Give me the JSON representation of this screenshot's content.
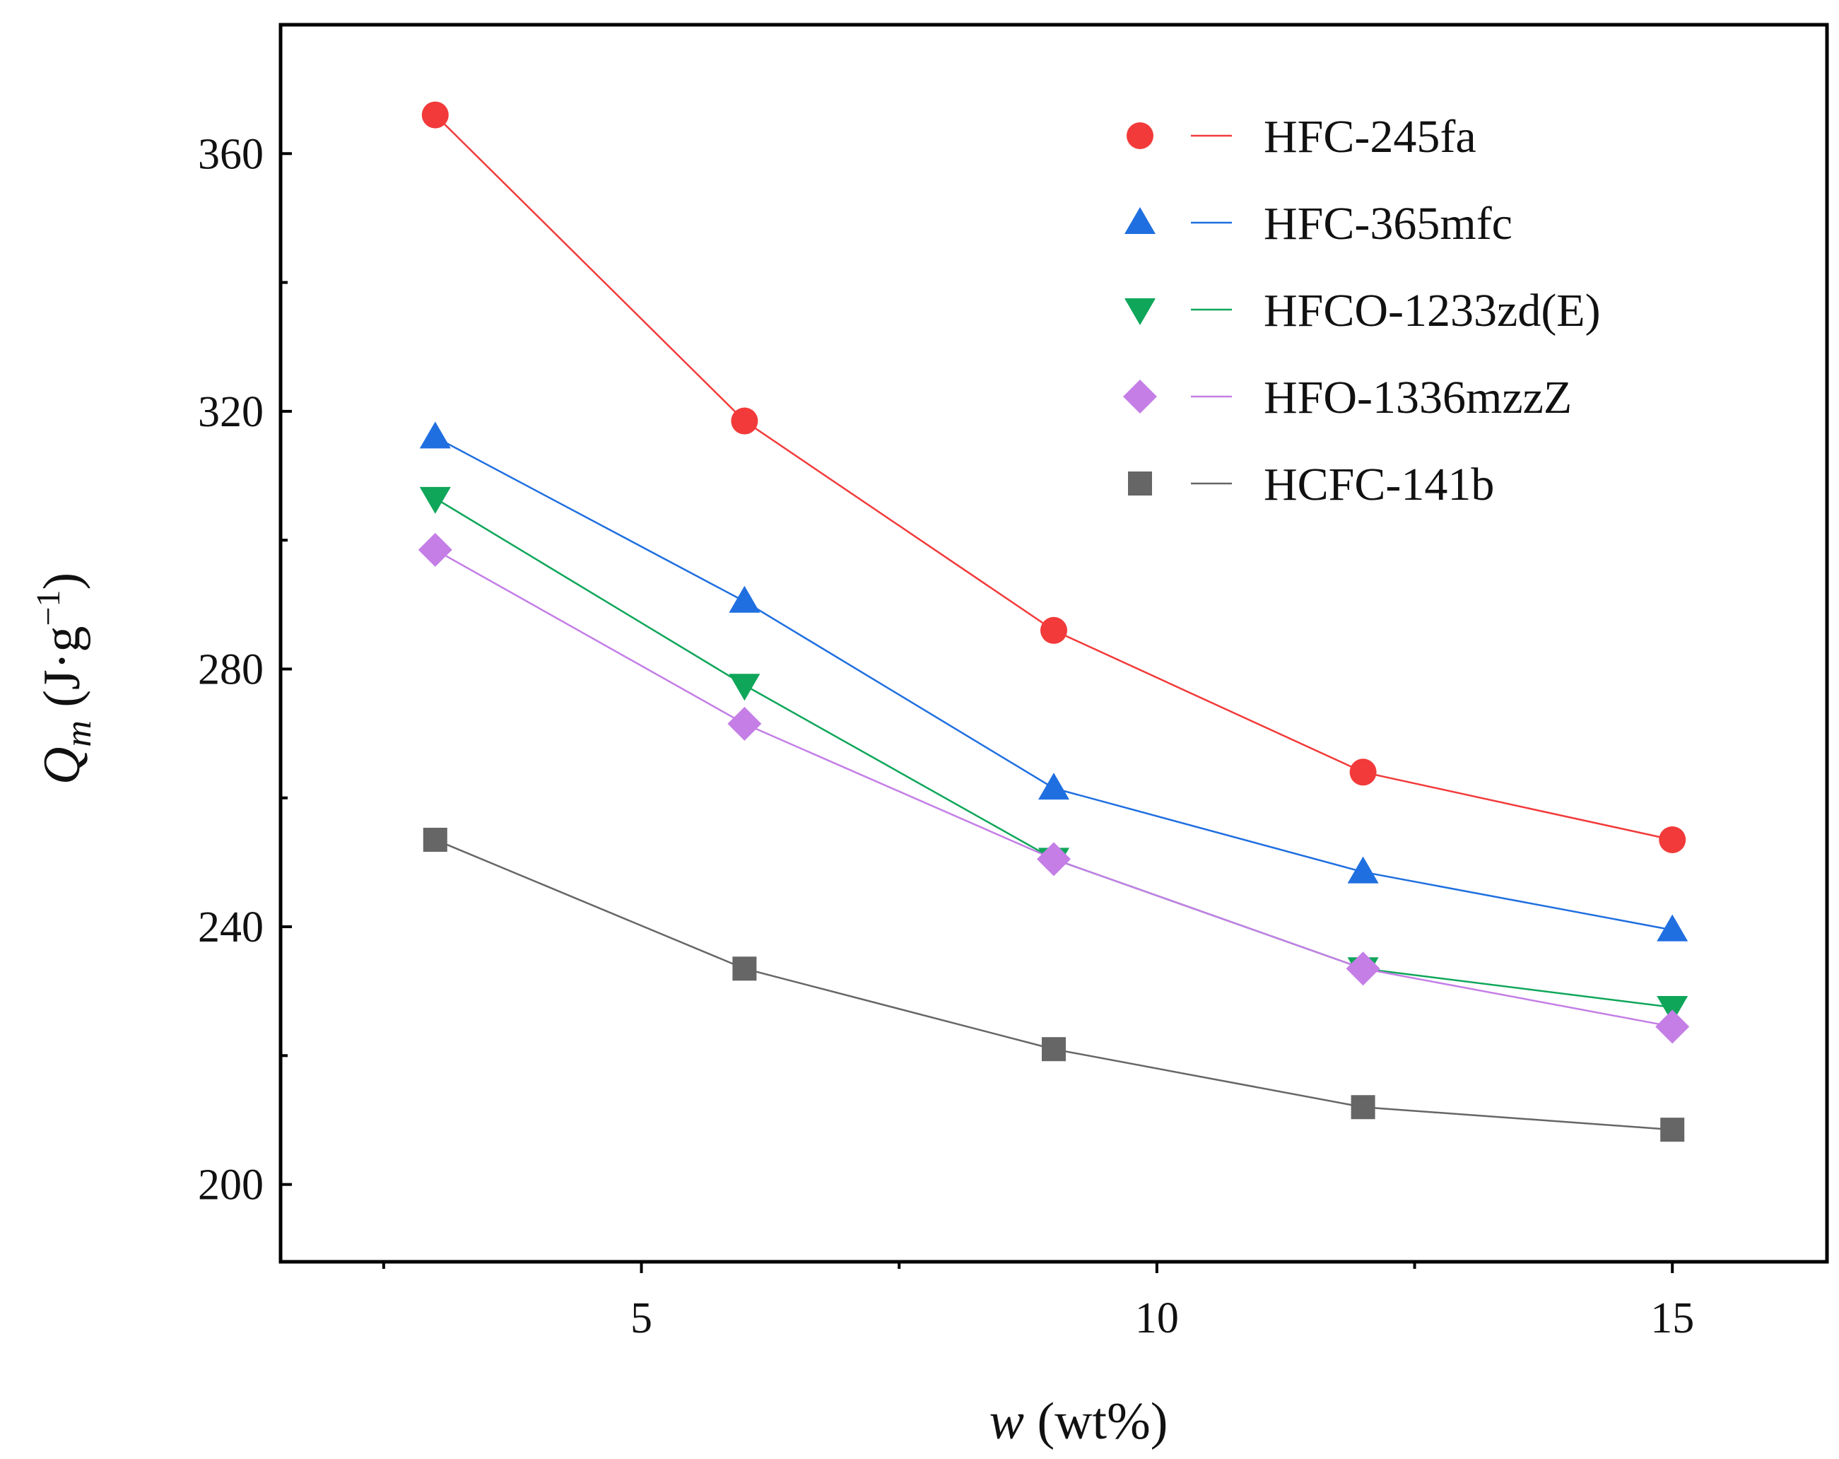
{
  "chart_data": {
    "type": "line",
    "title": "",
    "xlabel": {
      "var": "w",
      "unit": "(wt%)"
    },
    "ylabel": {
      "var": "Q",
      "sub": "m",
      "unit": "(J·g",
      "exp": "−1",
      "close": ")"
    },
    "xlim": [
      1.5,
      16.5
    ],
    "ylim": [
      188,
      380
    ],
    "xticks": [
      5,
      10,
      15
    ],
    "xminor_ticks": [
      2.5,
      7.5,
      12.5
    ],
    "yticks": [
      200,
      240,
      280,
      320,
      360
    ],
    "yminor_ticks": [
      220,
      260,
      300,
      340,
      380
    ],
    "grid": false,
    "legend_position": "top-right",
    "x": [
      3,
      6,
      9,
      12,
      15
    ],
    "series": [
      {
        "name": "HFC-245fa",
        "color": "#f23a3a",
        "marker": "circle",
        "values": [
          366,
          318.5,
          286,
          264,
          253.5
        ]
      },
      {
        "name": "HFC-365mfc",
        "color": "#1f6fe0",
        "marker": "triangle-up",
        "values": [
          316,
          290.5,
          261.5,
          248.5,
          239.5
        ]
      },
      {
        "name": "HFCO-1233zd(E)",
        "color": "#0fa65a",
        "marker": "triangle-down",
        "values": [
          306.5,
          277.5,
          250.5,
          233.5,
          227.5
        ]
      },
      {
        "name": "HFO-1336mzzZ",
        "color": "#c47ee6",
        "marker": "diamond",
        "values": [
          298.5,
          271.5,
          250.5,
          233.5,
          224.5
        ]
      },
      {
        "name": "HCFC-141b",
        "color": "#666666",
        "marker": "square",
        "values": [
          253.5,
          233.5,
          221,
          212,
          208.5
        ]
      }
    ]
  }
}
